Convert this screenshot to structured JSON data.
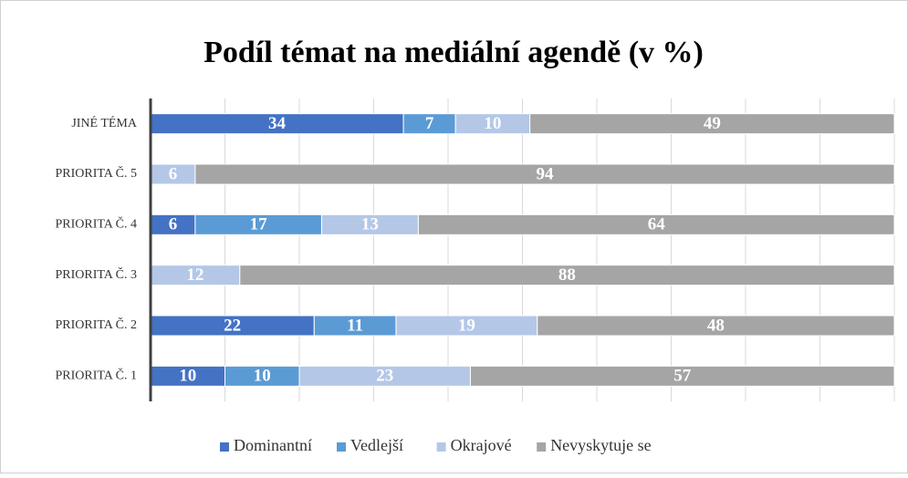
{
  "chart_data": {
    "type": "stacked-bar-horizontal",
    "title": "Podíl témat na mediální agendě (v %)",
    "categories": [
      "JINÉ TÉMA",
      "PRIORITA Č. 5",
      "PRIORITA Č. 4",
      "PRIORITA Č. 3",
      "PRIORITA Č. 2",
      "PRIORITA Č. 1"
    ],
    "series": [
      {
        "name": "Dominantní",
        "color": "#4472c4",
        "values": [
          34,
          0,
          6,
          0,
          22,
          10
        ],
        "value_labels": [
          "34",
          null,
          "6",
          null,
          "22",
          "10"
        ]
      },
      {
        "name": "Vedlejší",
        "color": "#5b9bd5",
        "values": [
          7,
          0,
          17,
          0,
          11,
          10
        ],
        "value_labels": [
          "7",
          null,
          "17",
          null,
          "11",
          "10"
        ]
      },
      {
        "name": "Okrajové",
        "color": "#b4c7e7",
        "values": [
          10,
          6,
          13,
          12,
          19,
          23
        ],
        "value_labels": [
          "10",
          "6",
          "13",
          "12",
          "19",
          "23"
        ]
      },
      {
        "name": "Nevyskytuje se",
        "color": "#a5a5a5",
        "values": [
          49,
          94,
          64,
          88,
          48,
          57
        ],
        "value_labels": [
          "49",
          "94",
          "64",
          "88",
          "48",
          "57"
        ]
      }
    ],
    "xlim": [
      0,
      100
    ],
    "xticks": [
      0,
      10,
      20,
      30,
      40,
      50,
      60,
      70,
      80,
      90,
      100
    ],
    "grid": true,
    "legend": "bottom"
  }
}
